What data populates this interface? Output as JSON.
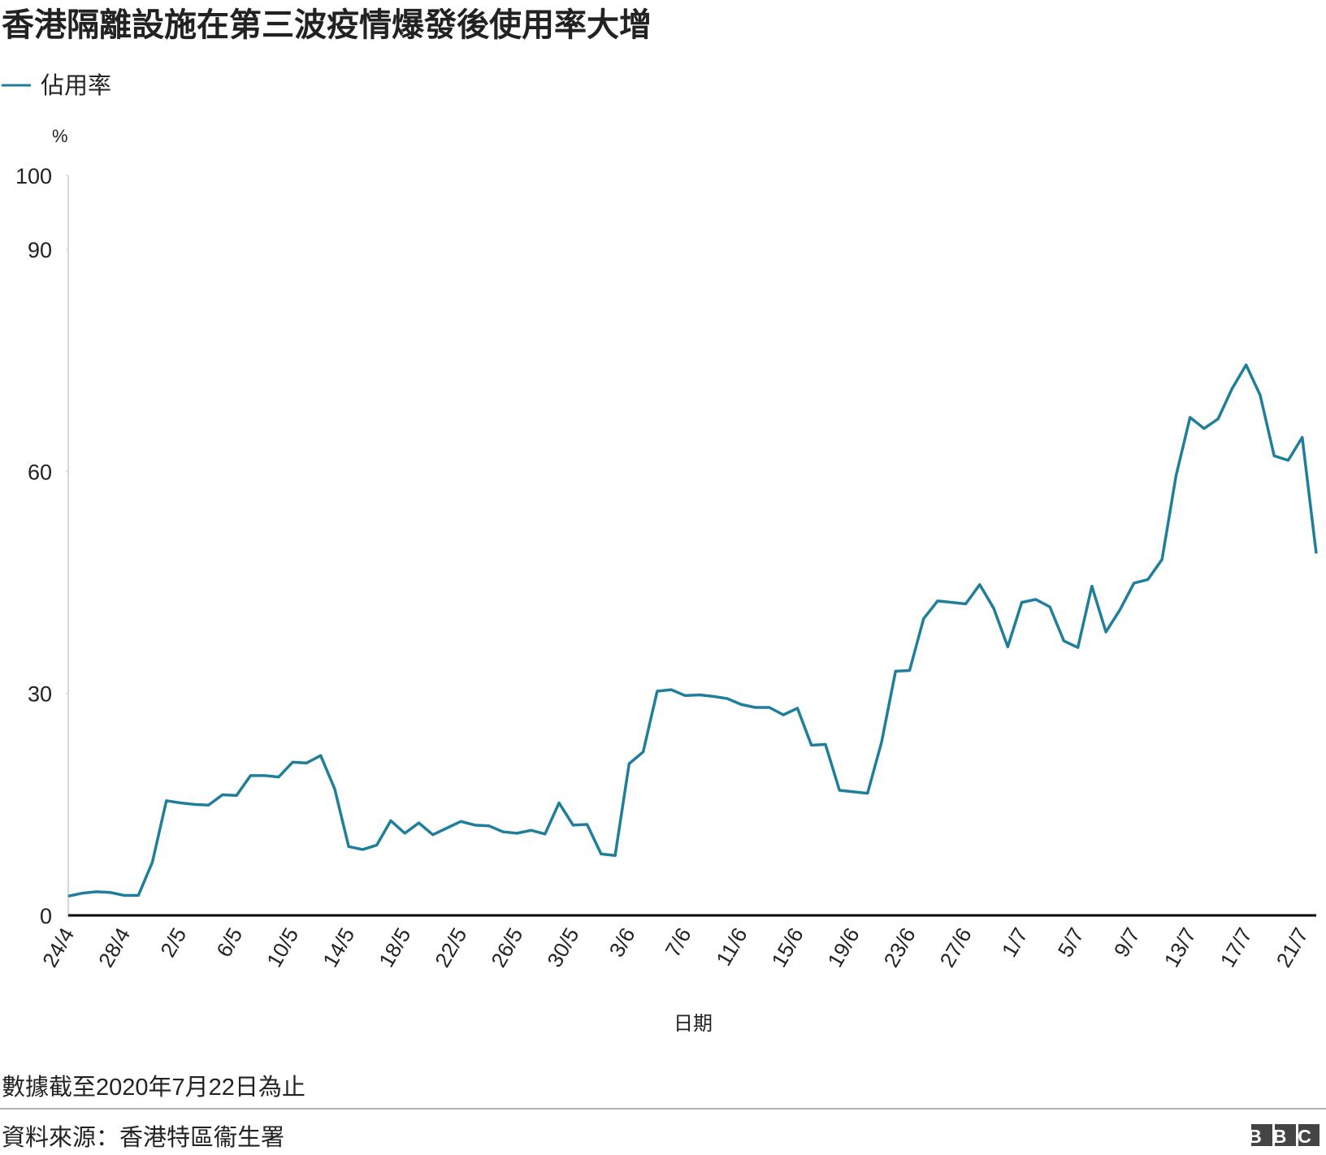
{
  "chart_data": {
    "type": "line",
    "title": "香港隔離設施在第三波疫情爆發後使用率大增",
    "y_unit": "%",
    "x_label": "日期",
    "note": "數據截至2020年7月22日為止",
    "source": "資料來源：香港特區衞生署",
    "logo": "BBC",
    "categories": [
      "24/4",
      null,
      null,
      null,
      "28/4",
      null,
      null,
      null,
      "2/5",
      null,
      null,
      null,
      "6/5",
      null,
      null,
      null,
      "10/5",
      null,
      null,
      null,
      "14/5",
      null,
      null,
      null,
      "18/5",
      null,
      null,
      null,
      "22/5",
      null,
      null,
      null,
      "26/5",
      null,
      null,
      null,
      "30/5",
      null,
      null,
      null,
      "3/6",
      null,
      null,
      null,
      "7/6",
      null,
      null,
      null,
      "11/6",
      null,
      null,
      null,
      "15/6",
      null,
      null,
      null,
      "19/6",
      null,
      null,
      null,
      "23/6",
      null,
      null,
      null,
      "27/6",
      null,
      null,
      null,
      "1/7",
      null,
      null,
      null,
      "5/7",
      null,
      null,
      null,
      "9/7",
      null,
      null,
      null,
      "13/7",
      null,
      null,
      null,
      "17/7",
      null,
      null,
      null,
      "21/7",
      null
    ],
    "series": [
      {
        "name": "佔用率",
        "color": "#1f7f9b",
        "values": [
          2.6,
          3.0,
          3.2,
          3.1,
          2.7,
          2.7,
          7.2,
          15.5,
          15.2,
          15.0,
          14.9,
          16.3,
          16.2,
          18.9,
          18.9,
          18.7,
          20.7,
          20.6,
          21.6,
          17.1,
          9.3,
          8.9,
          9.5,
          12.8,
          11.1,
          12.5,
          10.9,
          11.8,
          12.7,
          12.2,
          12.1,
          11.3,
          11.1,
          11.5,
          11.0,
          15.2,
          12.2,
          12.3,
          8.3,
          8.1,
          20.5,
          22.1,
          30.3,
          30.5,
          29.7,
          29.8,
          29.6,
          29.3,
          28.5,
          28.1,
          28.1,
          27.1,
          28.0,
          23.0,
          23.1,
          16.9,
          16.7,
          16.5,
          23.4,
          33.0,
          33.1,
          40.1,
          42.5,
          42.3,
          42.1,
          44.7,
          41.5,
          36.3,
          42.3,
          42.7,
          41.7,
          37.1,
          36.2,
          44.5,
          38.3,
          41.3,
          44.9,
          45.4,
          48.1,
          59.4,
          67.3,
          65.8,
          67.1,
          71.2,
          74.4,
          70.3,
          62.1,
          61.5,
          64.6,
          48.9
        ]
      }
    ],
    "ylim": [
      0,
      100
    ],
    "yticks": [
      0,
      30,
      60,
      90,
      100
    ],
    "grid": false
  }
}
